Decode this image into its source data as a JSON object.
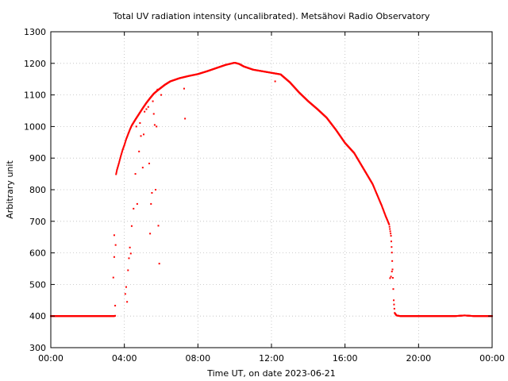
{
  "chart_data": {
    "type": "scatter",
    "title": "Total UV radiation intensity (uncalibrated). Metsähovi Radio Observatory",
    "xlabel": "Time UT, on date 2023-06-21",
    "ylabel": "Arbitrary unit",
    "xlim": [
      0,
      24
    ],
    "ylim": [
      300,
      1300
    ],
    "x_ticks": [
      0,
      4,
      8,
      12,
      16,
      20,
      24
    ],
    "x_tick_labels": [
      "00:00",
      "04:00",
      "08:00",
      "12:00",
      "16:00",
      "20:00",
      "00:00"
    ],
    "y_ticks": [
      300,
      400,
      500,
      600,
      700,
      800,
      900,
      1000,
      1100,
      1200,
      1300
    ],
    "y_tick_labels": [
      "300",
      "400",
      "500",
      "600",
      "700",
      "800",
      "900",
      "1000",
      "1100",
      "1200",
      "1300"
    ],
    "grid": true,
    "marker_color": "#ff0000",
    "series": [
      {
        "x": [
          0.0,
          0.5,
          1.0,
          1.5,
          2.0,
          2.5,
          3.0,
          3.25,
          3.4,
          3.45,
          3.5,
          3.55,
          3.6,
          3.7,
          3.8,
          3.9,
          4.0,
          4.1,
          4.2,
          4.3,
          4.4,
          4.6,
          4.8,
          5.0,
          5.2,
          5.4,
          5.6,
          5.8,
          6.0,
          6.2,
          6.5,
          7.0,
          7.5,
          8.0,
          8.5,
          9.0,
          9.5,
          10.0,
          10.25,
          10.5,
          11.0,
          11.5,
          12.0,
          12.5,
          13.0,
          13.5,
          14.0,
          14.5,
          15.0,
          15.5,
          16.0,
          16.5,
          17.0,
          17.5,
          18.0,
          18.2,
          18.4,
          18.5,
          18.55,
          18.6,
          18.65,
          18.7,
          18.8,
          19.0,
          19.5,
          20.0,
          20.5,
          21.0,
          21.5,
          22.0,
          22.5,
          23.0,
          23.5,
          24.0,
          3.4,
          3.45,
          3.45,
          3.5,
          4.05,
          4.1,
          4.15,
          4.2,
          4.25,
          4.3,
          4.35,
          4.4,
          4.5,
          4.6,
          4.65,
          4.7,
          4.8,
          4.85,
          4.9,
          5.0,
          5.05,
          5.1,
          5.2,
          5.3,
          5.35,
          5.4,
          5.45,
          5.5,
          5.55,
          5.6,
          5.65,
          5.7,
          5.75,
          5.8,
          5.85,
          5.9,
          6.0,
          7.25,
          7.3,
          12.2,
          18.45,
          18.5,
          18.55
        ],
        "y": [
          400,
          400,
          400,
          400,
          400,
          400,
          400,
          400,
          400,
          400,
          401,
          849,
          863,
          883,
          905,
          925,
          941,
          960,
          975,
          990,
          1003,
          1022,
          1040,
          1058,
          1075,
          1090,
          1104,
          1114,
          1123,
          1132,
          1143,
          1153,
          1160,
          1166,
          1175,
          1185,
          1195,
          1202,
          1198,
          1190,
          1180,
          1175,
          1170,
          1165,
          1140,
          1108,
          1080,
          1055,
          1028,
          990,
          948,
          916,
          867,
          818,
          749,
          718,
          690,
          654,
          601,
          521,
          450,
          410,
          402,
          400,
          400,
          400,
          400,
          400,
          400,
          400,
          402,
          400,
          400,
          400,
          522,
          587,
          656,
          433,
          470,
          492,
          445,
          545,
          583,
          617,
          598,
          685,
          740,
          850,
          1000,
          755,
          921,
          1011,
          970,
          870,
          975,
          1047,
          1055,
          1062,
          883,
          661,
          755,
          790,
          1080,
          1040,
          1005,
          800,
          1000,
          1117,
          686,
          566,
          1100,
          1120,
          1025,
          1143,
          520,
          525,
          541
        ]
      }
    ]
  }
}
